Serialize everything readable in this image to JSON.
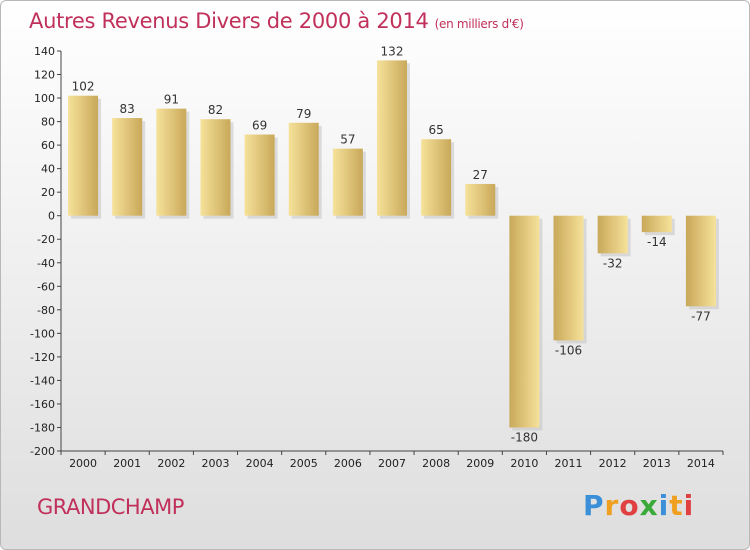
{
  "chart_data": {
    "type": "bar",
    "title": "Autres Revenus Divers de 2000 à 2014",
    "subtitle": "(en milliers d'€)",
    "categories": [
      "2000",
      "2001",
      "2002",
      "2003",
      "2004",
      "2005",
      "2006",
      "2007",
      "2008",
      "2009",
      "2010",
      "2011",
      "2012",
      "2013",
      "2014"
    ],
    "values": [
      102,
      83,
      91,
      82,
      69,
      79,
      57,
      132,
      65,
      27,
      -180,
      -106,
      -32,
      -14,
      -77
    ],
    "data_labels": [
      "102",
      "83",
      "91",
      "82",
      "69",
      "79",
      "57",
      "132",
      "65",
      "27",
      "-180",
      "-106",
      "-32",
      "-14",
      "-77"
    ],
    "ylim": [
      -200,
      140
    ],
    "yticks": [
      140,
      120,
      100,
      80,
      60,
      40,
      20,
      0,
      -20,
      -40,
      -60,
      -80,
      -100,
      -120,
      -140,
      -160,
      -180,
      -200
    ],
    "ytick_labels": [
      "140",
      "120",
      "100",
      "80",
      "60",
      "40",
      "20",
      "0",
      "-20",
      "-40",
      "-60",
      "-80",
      "-100",
      "-120",
      "-140",
      "-160",
      "-180",
      "-200"
    ],
    "grid": "none",
    "bar_color": "#dcbb70",
    "bar_light_color": "#f6e29a"
  },
  "commune": "GRANDCHAMP",
  "logo": {
    "letters": [
      "P",
      "r",
      "o",
      "x",
      "i",
      "t",
      "i"
    ],
    "colors": [
      "#3a8fd8",
      "#f0a020",
      "#e04040",
      "#3aaa3a",
      "#3a8fd8",
      "#f0a020",
      "#e04040"
    ]
  },
  "title_color": "#c0305a"
}
